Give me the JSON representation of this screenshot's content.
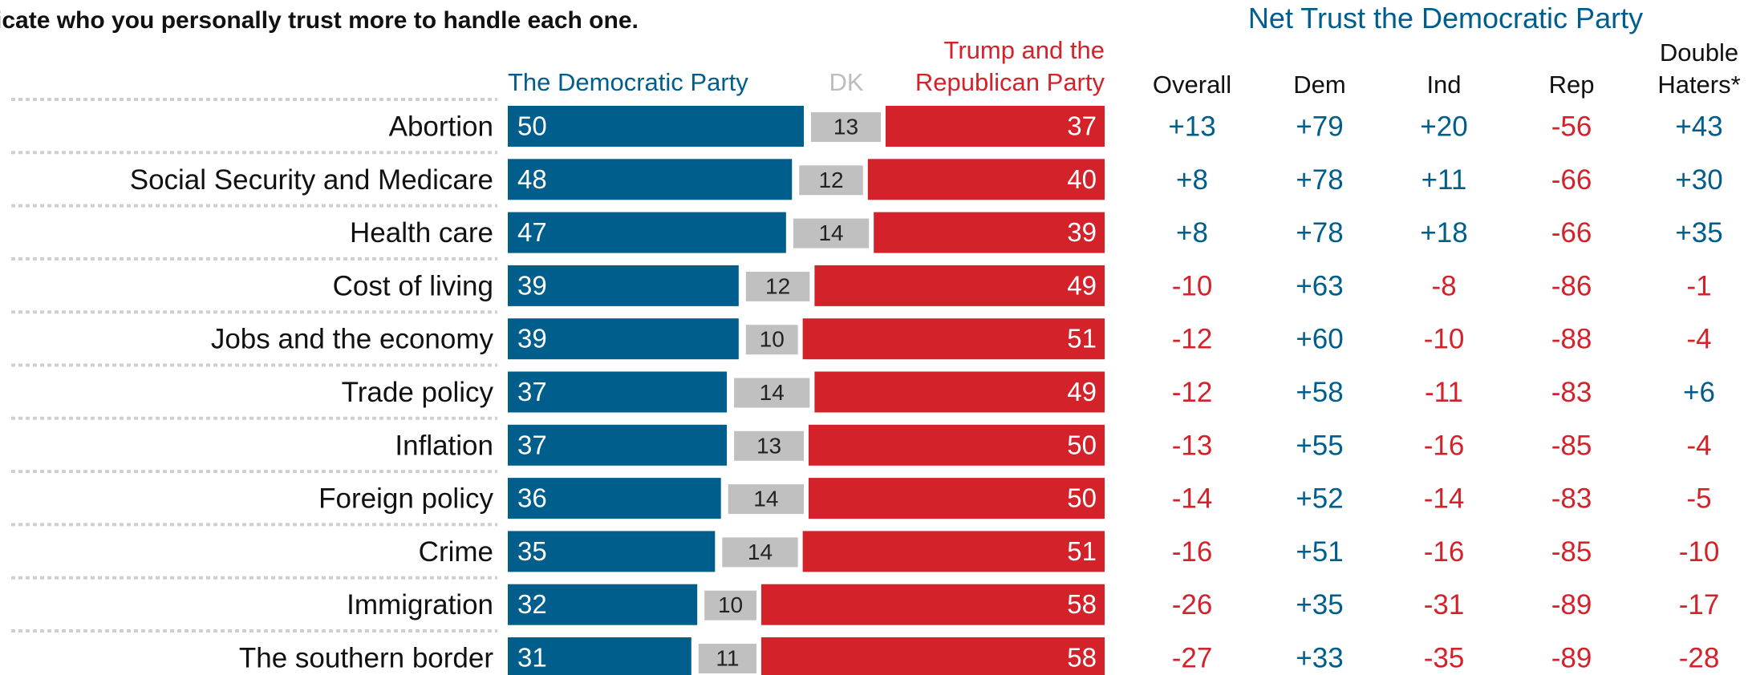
{
  "header": {
    "question_fragment": "icate who you personally trust more to handle each one.",
    "net_title": "Net Trust the Democratic Party"
  },
  "legend": {
    "dem": "The Democratic Party",
    "dk": "DK",
    "rep_line1": "Trump and the",
    "rep_line2": "Republican Party"
  },
  "net_columns": {
    "overall": "Overall",
    "dem": "Dem",
    "ind": "Ind",
    "rep": "Rep",
    "dh_line1": "Double",
    "dh_line2": "Haters*"
  },
  "colors": {
    "dem": "#005e8c",
    "dk": "#c0c0c0",
    "rep": "#d3222a",
    "positive_text": "#005e8c",
    "negative_text": "#d3222a",
    "dk_legend": "#bdbdbd"
  },
  "chart_data": {
    "type": "bar",
    "stacked": true,
    "orientation": "horizontal",
    "categories": [
      "Abortion",
      "Social Security and Medicare",
      "Health care",
      "Cost of living",
      "Jobs and the economy",
      "Trade policy",
      "Inflation",
      "Foreign policy",
      "Crime",
      "Immigration",
      "The southern border"
    ],
    "series": [
      {
        "name": "The Democratic Party",
        "values": [
          50,
          48,
          47,
          39,
          39,
          37,
          37,
          36,
          35,
          32,
          31
        ]
      },
      {
        "name": "DK",
        "values": [
          13,
          12,
          14,
          12,
          10,
          14,
          13,
          14,
          14,
          10,
          11
        ]
      },
      {
        "name": "Trump and the Republican Party",
        "values": [
          37,
          40,
          39,
          49,
          51,
          49,
          50,
          50,
          51,
          58,
          58
        ]
      }
    ],
    "net_trust": {
      "columns": [
        "Overall",
        "Dem",
        "Ind",
        "Rep",
        "Double Haters*"
      ],
      "rows": [
        [
          "+13",
          "+79",
          "+20",
          "-56",
          "+43"
        ],
        [
          "+8",
          "+78",
          "+11",
          "-66",
          "+30"
        ],
        [
          "+8",
          "+78",
          "+18",
          "-66",
          "+35"
        ],
        [
          "-10",
          "+63",
          "-8",
          "-86",
          "-1"
        ],
        [
          "-12",
          "+60",
          "-10",
          "-88",
          "-4"
        ],
        [
          "-12",
          "+58",
          "-11",
          "-83",
          "+6"
        ],
        [
          "-13",
          "+55",
          "-16",
          "-85",
          "-4"
        ],
        [
          "-14",
          "+52",
          "-14",
          "-83",
          "-5"
        ],
        [
          "-16",
          "+51",
          "-16",
          "-85",
          "-10"
        ],
        [
          "-26",
          "+35",
          "-31",
          "-89",
          "-17"
        ],
        [
          "-27",
          "+33",
          "-35",
          "-89",
          "-28"
        ]
      ]
    }
  }
}
